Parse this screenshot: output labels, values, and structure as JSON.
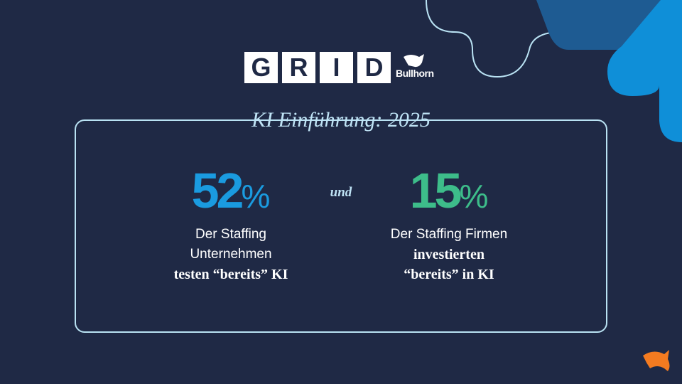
{
  "logo": {
    "letters": [
      "G",
      "R",
      "I",
      "D"
    ],
    "brand": "Bullhorn"
  },
  "title": "KI Einführung: 2025",
  "connector": "und",
  "stats": [
    {
      "value": 52,
      "unit": "%",
      "lines": [
        "Der Staffing",
        "Unternehmen"
      ],
      "bold": "testen “bereits” KI",
      "color": "#1a9be0"
    },
    {
      "value": 15,
      "unit": "%",
      "lines": [
        "Der Staffing Firmen"
      ],
      "bold_lines": [
        "investierten",
        "“bereits” in KI"
      ],
      "color": "#3dbd8a"
    }
  ]
}
